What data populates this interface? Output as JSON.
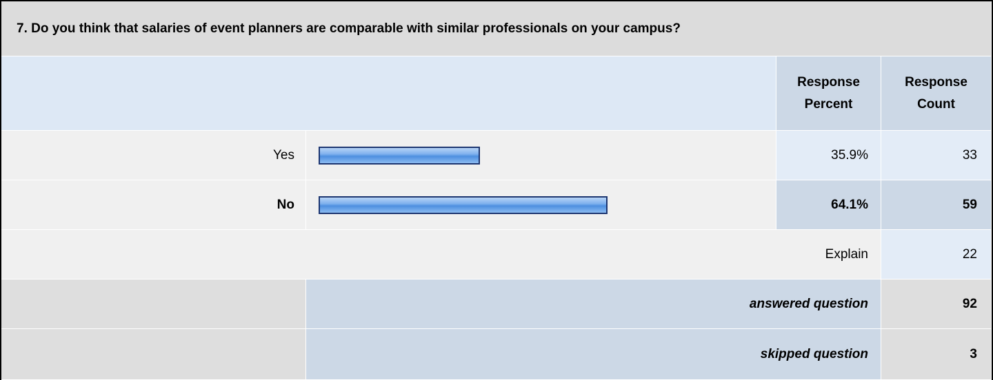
{
  "title": "7. Do you think that salaries of event planners are comparable with similar professionals on your campus?",
  "table": {
    "headers": [
      "Response Percent",
      "Response Count"
    ],
    "rows": [
      {
        "label": "Yes",
        "percent": 35.9,
        "percent_label": "35.9%",
        "count": 33
      },
      {
        "label": "No",
        "percent": 64.1,
        "percent_label": "64.1%",
        "count": 59
      }
    ],
    "explain": {
      "label": "Explain",
      "count": 22
    },
    "answered": {
      "label": "answered question",
      "count": 92
    },
    "skipped": {
      "label": "skipped question",
      "count": 3
    }
  }
}
